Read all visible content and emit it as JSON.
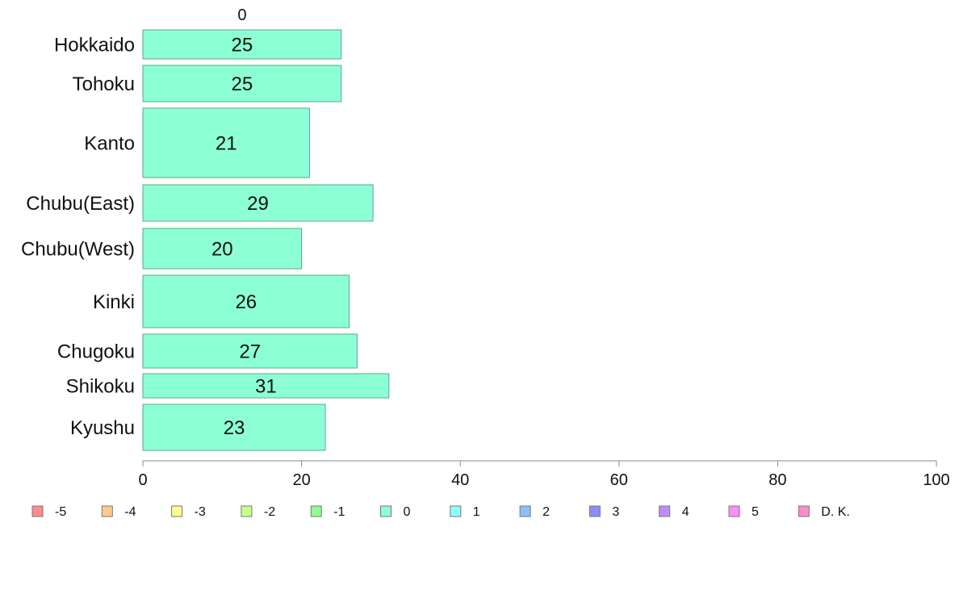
{
  "chart_data": {
    "type": "bar",
    "orientation": "horizontal",
    "stacked": true,
    "top_label": "0",
    "categories": [
      "Hokkaido",
      "Tohoku",
      "Kanto",
      "Chubu(East)",
      "Chubu(West)",
      "Kinki",
      "Chugoku",
      "Shikoku",
      "Kyushu"
    ],
    "series": [
      {
        "name": "0",
        "color": "#8dffd5",
        "values": [
          25,
          25,
          21,
          29,
          20,
          26,
          27,
          31,
          23
        ]
      }
    ],
    "xlim": [
      0,
      100
    ],
    "xticks": [
      0,
      20,
      40,
      60,
      80,
      100
    ],
    "grid": false,
    "legend_position": "bottom",
    "legend": [
      {
        "label": "-5",
        "color": "#ff8c8c"
      },
      {
        "label": "-4",
        "color": "#ffc98c"
      },
      {
        "label": "-3",
        "color": "#ffff8c"
      },
      {
        "label": "-2",
        "color": "#c9ff8c"
      },
      {
        "label": "-1",
        "color": "#8cff8c"
      },
      {
        "label": "0",
        "color": "#8dffd5"
      },
      {
        "label": "1",
        "color": "#8cffff"
      },
      {
        "label": "2",
        "color": "#8cbfff"
      },
      {
        "label": "3",
        "color": "#8c8cff"
      },
      {
        "label": "4",
        "color": "#bf8cff"
      },
      {
        "label": "5",
        "color": "#ff8cff"
      },
      {
        "label": "D. K.",
        "color": "#ff8cc9"
      }
    ]
  }
}
